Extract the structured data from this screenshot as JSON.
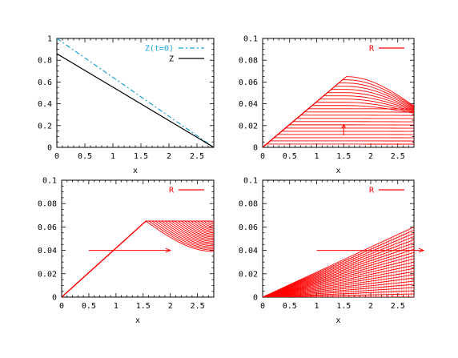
{
  "chart_data": [
    {
      "type": "line",
      "xlabel": "x",
      "xlim": [
        0,
        2.8
      ],
      "ylim": [
        0,
        1
      ],
      "xticks": [
        "0",
        "0.5",
        "1",
        "1.5",
        "2",
        "2.5"
      ],
      "yticks": [
        "0",
        "0.2",
        "0.4",
        "0.6",
        "0.8",
        "1"
      ],
      "grid": false,
      "legend_position": "top-right",
      "series": [
        {
          "name": "Z(t=0)",
          "color": "#1aa3d9",
          "style": "dash-dot",
          "x": [
            0,
            2.8
          ],
          "y": [
            1.0,
            0.0
          ]
        },
        {
          "name": "Z",
          "color": "#000000",
          "style": "solid",
          "x": [
            0,
            2.8
          ],
          "y": [
            0.86,
            0.0
          ]
        }
      ]
    },
    {
      "type": "line",
      "xlabel": "x",
      "xlim": [
        0,
        2.8
      ],
      "ylim": [
        0,
        0.1
      ],
      "xticks": [
        "0",
        "0.5",
        "1",
        "1.5",
        "2",
        "2.5"
      ],
      "yticks": [
        "0",
        "0.02",
        "0.04",
        "0.06",
        "0.08",
        "0.1"
      ],
      "grid": false,
      "legend_position": "top-right",
      "legend": "R",
      "color": "#ff0000",
      "family": "flat-top",
      "curves": 22,
      "peak": {
        "x": 1.55,
        "y": 0.065
      },
      "right_end_max": 0.038,
      "left_spread": 0.07,
      "arrow": {
        "x": 1.5,
        "y_from": 0.011,
        "y_to": 0.021
      }
    },
    {
      "type": "line",
      "xlabel": "x",
      "xlim": [
        0,
        2.8
      ],
      "ylim": [
        0,
        0.1
      ],
      "xticks": [
        "0",
        "0.5",
        "1",
        "1.5",
        "2",
        "2.5"
      ],
      "yticks": [
        "0",
        "0.02",
        "0.04",
        "0.06",
        "0.08",
        "0.1"
      ],
      "grid": false,
      "legend_position": "top-right",
      "legend": "R",
      "color": "#ff0000",
      "family": "shifting-peak",
      "curves": 22,
      "peak_y": 0.065,
      "peak_x_range": [
        1.55,
        2.8
      ],
      "right_end_range": [
        0.039,
        0.065
      ],
      "arrow": {
        "y": 0.04,
        "x_from": 0.5,
        "x_to": 2.0
      }
    },
    {
      "type": "line",
      "xlabel": "x",
      "xlim": [
        0,
        2.8
      ],
      "ylim": [
        0,
        0.1
      ],
      "xticks": [
        "0",
        "0.5",
        "1",
        "1.5",
        "2",
        "2.5"
      ],
      "yticks": [
        "0",
        "0.02",
        "0.04",
        "0.06",
        "0.08",
        "0.1"
      ],
      "grid": false,
      "legend_position": "top-right",
      "legend": "R",
      "color": "#ff0000",
      "family": "rays",
      "curves": 22,
      "max_end": 0.06,
      "arrow": {
        "y": 0.04,
        "x_from": 1.0,
        "x_to": 3.0
      }
    }
  ]
}
